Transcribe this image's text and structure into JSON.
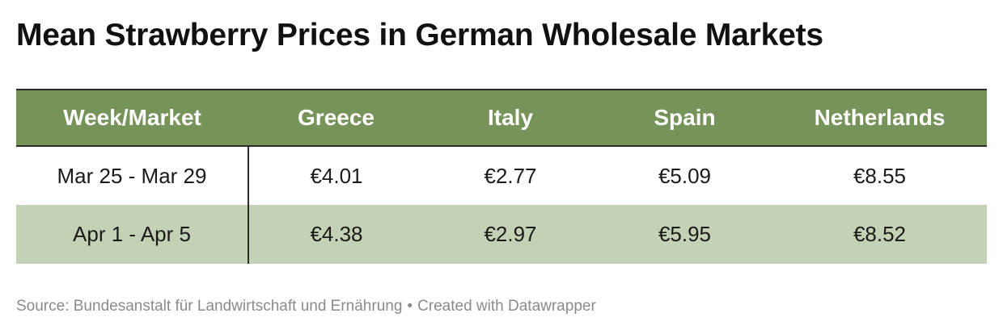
{
  "chart_data": {
    "type": "table",
    "title": "Mean Strawberry Prices in German Wholesale Markets",
    "columns": [
      "Week/Market",
      "Greece",
      "Italy",
      "Spain",
      "Netherlands"
    ],
    "rows": [
      {
        "week": "Mar 25 - Mar 29",
        "values": [
          "€4.01",
          "€2.77",
          "€5.09",
          "€8.55"
        ]
      },
      {
        "week": "Apr 1 - Apr 5",
        "values": [
          "€4.38",
          "€2.97",
          "€5.95",
          "€8.52"
        ]
      }
    ],
    "numeric_values": {
      "currency": "€",
      "series": [
        {
          "name": "Greece",
          "values": [
            4.01,
            4.38
          ]
        },
        {
          "name": "Italy",
          "values": [
            2.77,
            2.97
          ]
        },
        {
          "name": "Spain",
          "values": [
            5.09,
            5.95
          ]
        },
        {
          "name": "Netherlands",
          "values": [
            8.55,
            8.52
          ]
        }
      ]
    }
  },
  "footer": {
    "source": "Source: Bundesanstalt für Landwirtschaft und Ernährung",
    "separator": "•",
    "credit": "Created with Datawrapper"
  },
  "colors": {
    "header_bg": "#76935a",
    "header_text": "#ffffff",
    "row_alt_bg": "#c3d1b4",
    "footer_text": "#8a8a8a"
  }
}
